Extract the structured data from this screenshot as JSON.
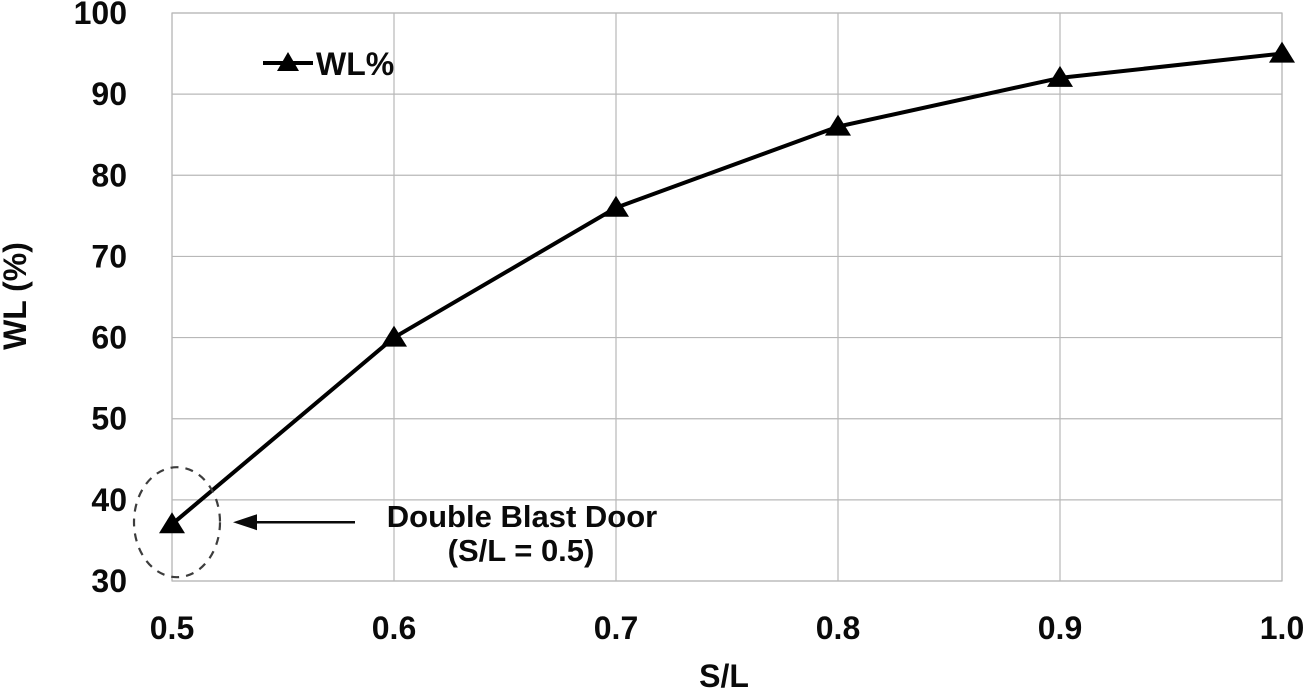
{
  "chart_data": {
    "type": "line",
    "title": "",
    "xlabel": "S/L",
    "ylabel": "WL (%)",
    "x": [
      0.5,
      0.6,
      0.7,
      0.8,
      0.9,
      1.0
    ],
    "series": [
      {
        "name": "WL%",
        "values": [
          37,
          60,
          76,
          86,
          92,
          95
        ]
      }
    ],
    "x_ticks": [
      "0.5",
      "0.6",
      "0.7",
      "0.8",
      "0.9",
      "1.0"
    ],
    "y_ticks": [
      "30",
      "40",
      "50",
      "60",
      "70",
      "80",
      "90",
      "100"
    ],
    "xlim": [
      0.5,
      1.0
    ],
    "ylim": [
      30,
      100
    ],
    "grid": true,
    "legend_position": "inside-top-left",
    "marker": "filled-triangle",
    "line_color": "#000000",
    "marker_color": "#000000",
    "grid_color": "#b8b8b8",
    "annotation": {
      "line1": "Double Blast Door",
      "line2": "(S/L = 0.5)",
      "target_x": 0.5,
      "target_y": 37
    }
  }
}
